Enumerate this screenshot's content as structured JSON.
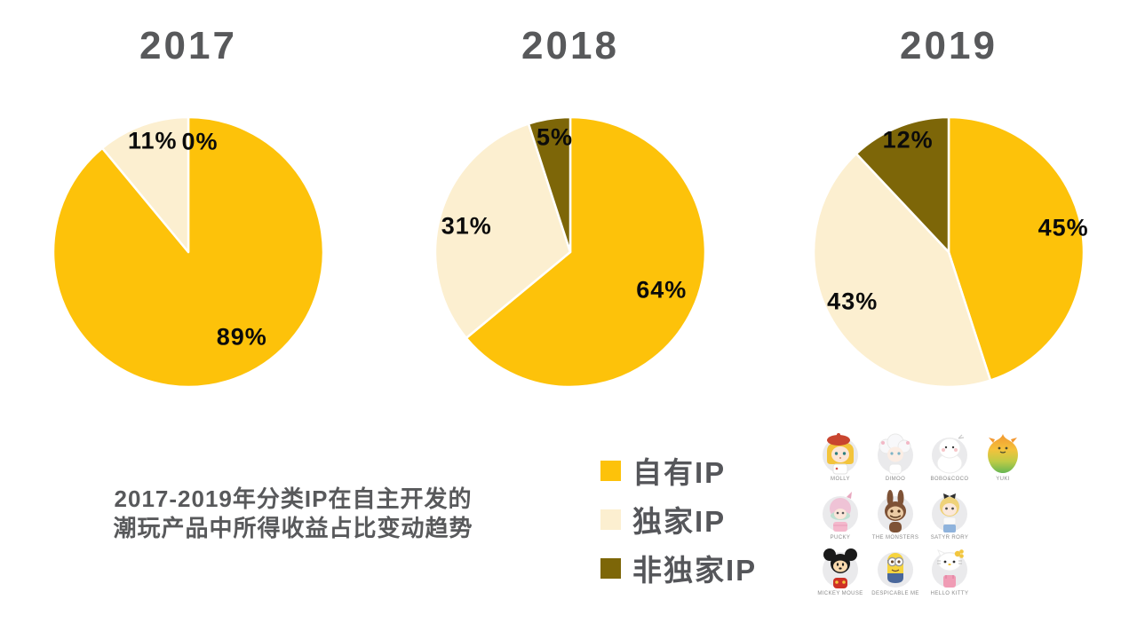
{
  "page": {
    "background": "#FFFFFF"
  },
  "caption": {
    "line1": "2017-2019年分类IP在自主开发的",
    "line2": "潮玩产品中所得收益占比变动趋势"
  },
  "legend": {
    "items": [
      {
        "label": "自有IP",
        "color": "#FDC20A"
      },
      {
        "label": "独家IP",
        "color": "#FCEFD0"
      },
      {
        "label": "非独家IP",
        "color": "#7D6608"
      }
    ]
  },
  "characters": [
    {
      "name": "MOLLY"
    },
    {
      "name": "DIMOO"
    },
    {
      "name": "BOBO&COCO"
    },
    {
      "name": "YUKI"
    },
    {
      "name": "PUCKY"
    },
    {
      "name": "THE MONSTERS"
    },
    {
      "name": "SATYR RORY"
    },
    {
      "name": "MICKEY MOUSE"
    },
    {
      "name": "DESPICABLE ME"
    },
    {
      "name": "HELLO KITTY"
    }
  ],
  "chart_data": {
    "type": "pie",
    "title": "2017-2019年分类IP在自主开发的潮玩产品中所得收益占比变动趋势",
    "categories": [
      "自有IP",
      "独家IP",
      "非独家IP"
    ],
    "colors": [
      "#FDC20A",
      "#FCEFD0",
      "#7D6608"
    ],
    "units": "%",
    "start_angle_deg": 0,
    "direction": "clockwise",
    "legend_position": "bottom-left",
    "pies": [
      {
        "year": "2017",
        "values": [
          89,
          11,
          0
        ],
        "label_dx": [
          18,
          2,
          13
        ],
        "label_dy": [
          -21,
          -8,
          1
        ]
      },
      {
        "year": "2018",
        "values": [
          64,
          31,
          5
        ],
        "label_dx": [
          -10,
          3,
          2
        ],
        "label_dy": [
          -10,
          6,
          -6
        ]
      },
      {
        "year": "2019",
        "values": [
          45,
          43,
          12
        ],
        "label_dx": [
          6,
          -1,
          0
        ],
        "label_dy": [
          -8,
          -7,
          -10
        ]
      }
    ]
  }
}
